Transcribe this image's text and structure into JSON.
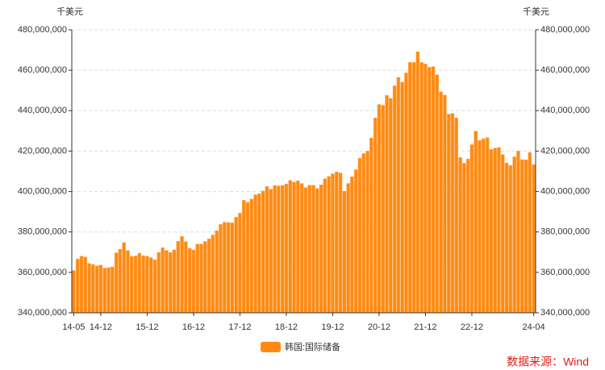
{
  "chart_data": {
    "type": "bar",
    "ylabel": "千美元",
    "y2label": "千美元",
    "categories": [
      "14-05",
      null,
      null,
      null,
      null,
      null,
      null,
      "14-12",
      null,
      null,
      null,
      null,
      null,
      null,
      null,
      null,
      null,
      null,
      null,
      "15-12",
      null,
      null,
      null,
      null,
      null,
      null,
      null,
      null,
      null,
      null,
      null,
      "16-12",
      null,
      null,
      null,
      null,
      null,
      null,
      null,
      null,
      null,
      null,
      null,
      "17-12",
      null,
      null,
      null,
      null,
      null,
      null,
      null,
      null,
      null,
      null,
      null,
      "18-12",
      null,
      null,
      null,
      null,
      null,
      null,
      null,
      null,
      null,
      null,
      null,
      "19-12",
      null,
      null,
      null,
      null,
      null,
      null,
      null,
      null,
      null,
      null,
      null,
      "20-12",
      null,
      null,
      null,
      null,
      null,
      null,
      null,
      null,
      null,
      null,
      null,
      "21-12",
      null,
      null,
      null,
      null,
      null,
      null,
      null,
      null,
      null,
      null,
      null,
      "22-12",
      null,
      null,
      null,
      null,
      null,
      null,
      null,
      null,
      null,
      null,
      null,
      null,
      null,
      null,
      null,
      "24-04"
    ],
    "series": [
      {
        "name": "韩国:国际储备",
        "color": "#ff8a12",
        "values": [
          360900000,
          366600000,
          368000000,
          367600000,
          364400000,
          363900000,
          363200000,
          363600000,
          362100000,
          362400000,
          362700000,
          369700000,
          371500000,
          374800000,
          370800000,
          367900000,
          368100000,
          369500000,
          368300000,
          368000000,
          367300000,
          366200000,
          369900000,
          372200000,
          370900000,
          369900000,
          371200000,
          375400000,
          377800000,
          375200000,
          371900000,
          371100000,
          374000000,
          374000000,
          375300000,
          376600000,
          378500000,
          380600000,
          383800000,
          384800000,
          384700000,
          384500000,
          387300000,
          389300000,
          395700000,
          394700000,
          396300000,
          398400000,
          398900000,
          400300000,
          402500000,
          401100000,
          403000000,
          402800000,
          403000000,
          403700000,
          405500000,
          404700000,
          405300000,
          404000000,
          402000000,
          403100000,
          403100000,
          401500000,
          403300000,
          406300000,
          407500000,
          408800000,
          409700000,
          409200000,
          400200000,
          404000000,
          407300000,
          410800000,
          416500000,
          418800000,
          420000000,
          426500000,
          436400000,
          443100000,
          442700000,
          447600000,
          446100000,
          452300000,
          456500000,
          454100000,
          458700000,
          463900000,
          463900000,
          469200000,
          463900000,
          463100000,
          461500000,
          461800000,
          457800000,
          449300000,
          447700000,
          438300000,
          438600000,
          436400000,
          416800000,
          414000000,
          416100000,
          423200000,
          429900000,
          425300000,
          426100000,
          426700000,
          420900000,
          421500000,
          421800000,
          418300000,
          414100000,
          412900000,
          417200000,
          420100000,
          415800000,
          415700000,
          419300000,
          413300000
        ]
      }
    ],
    "ylim": [
      340000000,
      480000000
    ],
    "yticks": [
      {
        "value": 340000000,
        "label": "340,000,000"
      },
      {
        "value": 360000000,
        "label": "360,000,000"
      },
      {
        "value": 380000000,
        "label": "380,000,000"
      },
      {
        "value": 400000000,
        "label": "400,000,000"
      },
      {
        "value": 420000000,
        "label": "420,000,000"
      },
      {
        "value": 440000000,
        "label": "440,000,000"
      },
      {
        "value": 460000000,
        "label": "460,000,000"
      },
      {
        "value": 480000000,
        "label": "480,000,000"
      }
    ],
    "y2lim": [
      340000000,
      480000000
    ],
    "y2ticks": [
      {
        "value": 340000000,
        "label": "340,000,000"
      },
      {
        "value": 360000000,
        "label": "360,000,000"
      },
      {
        "value": 380000000,
        "label": "380,000,000"
      },
      {
        "value": 400000000,
        "label": "400,000,000"
      },
      {
        "value": 420000000,
        "label": "420,000,000"
      },
      {
        "value": 440000000,
        "label": "440,000,000"
      },
      {
        "value": 460000000,
        "label": "460,000,000"
      },
      {
        "value": 480000000,
        "label": "480,000,000"
      }
    ],
    "grid": true,
    "legend": "bottom",
    "source": "数据来源：Wind",
    "source_color": "#e0201a"
  }
}
